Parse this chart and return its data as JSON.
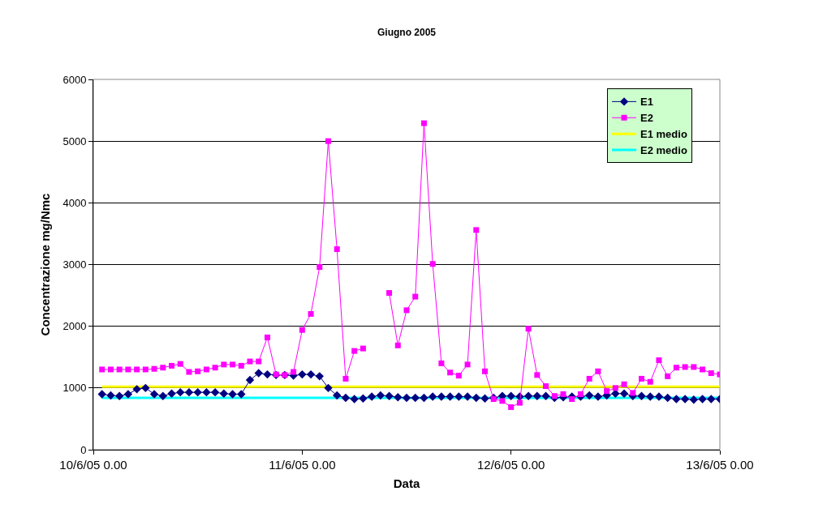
{
  "chart_data": {
    "type": "line",
    "title": "Giugno 2005",
    "xlabel": "Data",
    "ylabel": "Concentrazione mg/Nmc",
    "x": [
      "2005-06-10T01:00",
      "2005-06-10T02:00",
      "2005-06-10T03:00",
      "2005-06-10T04:00",
      "2005-06-10T05:00",
      "2005-06-10T06:00",
      "2005-06-10T07:00",
      "2005-06-10T08:00",
      "2005-06-10T09:00",
      "2005-06-10T10:00",
      "2005-06-10T11:00",
      "2005-06-10T12:00",
      "2005-06-10T13:00",
      "2005-06-10T14:00",
      "2005-06-10T15:00",
      "2005-06-10T16:00",
      "2005-06-10T17:00",
      "2005-06-10T18:00",
      "2005-06-10T19:00",
      "2005-06-10T20:00",
      "2005-06-10T21:00",
      "2005-06-10T22:00",
      "2005-06-10T23:00",
      "2005-06-11T00:00",
      "2005-06-11T01:00",
      "2005-06-11T02:00",
      "2005-06-11T03:00",
      "2005-06-11T04:00",
      "2005-06-11T05:00",
      "2005-06-11T06:00",
      "2005-06-11T07:00",
      "2005-06-11T08:00",
      "2005-06-11T09:00",
      "2005-06-11T10:00",
      "2005-06-11T11:00",
      "2005-06-11T12:00",
      "2005-06-11T13:00",
      "2005-06-11T14:00",
      "2005-06-11T15:00",
      "2005-06-11T16:00",
      "2005-06-11T17:00",
      "2005-06-11T18:00",
      "2005-06-11T19:00",
      "2005-06-11T20:00",
      "2005-06-11T21:00",
      "2005-06-11T22:00",
      "2005-06-11T23:00",
      "2005-06-12T00:00",
      "2005-06-12T01:00",
      "2005-06-12T02:00",
      "2005-06-12T03:00",
      "2005-06-12T04:00",
      "2005-06-12T05:00",
      "2005-06-12T06:00",
      "2005-06-12T07:00",
      "2005-06-12T08:00",
      "2005-06-12T09:00",
      "2005-06-12T10:00",
      "2005-06-12T11:00",
      "2005-06-12T12:00",
      "2005-06-12T13:00",
      "2005-06-12T14:00",
      "2005-06-12T15:00",
      "2005-06-12T16:00",
      "2005-06-12T17:00",
      "2005-06-12T18:00",
      "2005-06-12T19:00",
      "2005-06-12T20:00",
      "2005-06-12T21:00",
      "2005-06-12T22:00",
      "2005-06-12T23:00",
      "2005-06-13T00:00"
    ],
    "series": [
      {
        "name": "E1",
        "color": "#000080",
        "marker": "diamond",
        "values": [
          900,
          880,
          870,
          900,
          980,
          1000,
          900,
          870,
          910,
          930,
          930,
          930,
          930,
          930,
          910,
          900,
          900,
          1130,
          1240,
          1220,
          1210,
          1210,
          1200,
          1220,
          1220,
          1190,
          1000,
          880,
          840,
          820,
          830,
          860,
          880,
          870,
          850,
          840,
          840,
          840,
          860,
          860,
          860,
          860,
          860,
          840,
          830,
          840,
          870,
          870,
          860,
          870,
          870,
          870,
          840,
          850,
          860,
          860,
          880,
          860,
          880,
          910,
          910,
          870,
          870,
          860,
          860,
          840,
          820,
          820,
          810,
          820,
          820,
          820
        ]
      },
      {
        "name": "E2",
        "color": "#ff00ff",
        "marker": "square",
        "values": [
          1300,
          1300,
          1300,
          1300,
          1300,
          1300,
          1310,
          1330,
          1360,
          1390,
          1260,
          1270,
          1300,
          1330,
          1380,
          1380,
          1360,
          1430,
          1430,
          1820,
          1220,
          1210,
          1260,
          1940,
          2200,
          2960,
          5000,
          3250,
          1150,
          1600,
          1640,
          null,
          null,
          2540,
          1690,
          2260,
          2480,
          5290,
          3010,
          1400,
          1250,
          1200,
          1380,
          3560,
          1270,
          820,
          790,
          690,
          760,
          1960,
          1210,
          1030,
          870,
          900,
          820,
          900,
          1150,
          1270,
          950,
          1000,
          1060,
          920,
          1150,
          1100,
          1450,
          1190,
          1330,
          1340,
          1340,
          1300,
          1240,
          1220
        ]
      },
      {
        "name": "E1 medio",
        "color": "#ffff00",
        "marker": "none",
        "x": [
          "2005-06-10T01:00",
          "2005-06-13T00:00"
        ],
        "values": [
          1020,
          1020
        ]
      },
      {
        "name": "E2 medio",
        "color": "#00ffff",
        "marker": "none",
        "x": [
          "2005-06-10T01:00",
          "2005-06-13T00:00"
        ],
        "values": [
          840,
          840
        ]
      }
    ],
    "xlim": [
      "2005-06-10T00:00",
      "2005-06-13T00:00"
    ],
    "xticks": [
      {
        "value": "2005-06-10T00:00",
        "label": "10/6/05 0.00"
      },
      {
        "value": "2005-06-11T00:00",
        "label": "11/6/05 0.00"
      },
      {
        "value": "2005-06-12T00:00",
        "label": "12/6/05 0.00"
      },
      {
        "value": "2005-06-13T00:00",
        "label": "13/6/05 0.00"
      }
    ],
    "ylim": [
      0,
      6000
    ],
    "yticks": [
      0,
      1000,
      2000,
      3000,
      4000,
      5000,
      6000
    ],
    "grid": "y",
    "legend": "top right",
    "line_style": "solid"
  }
}
